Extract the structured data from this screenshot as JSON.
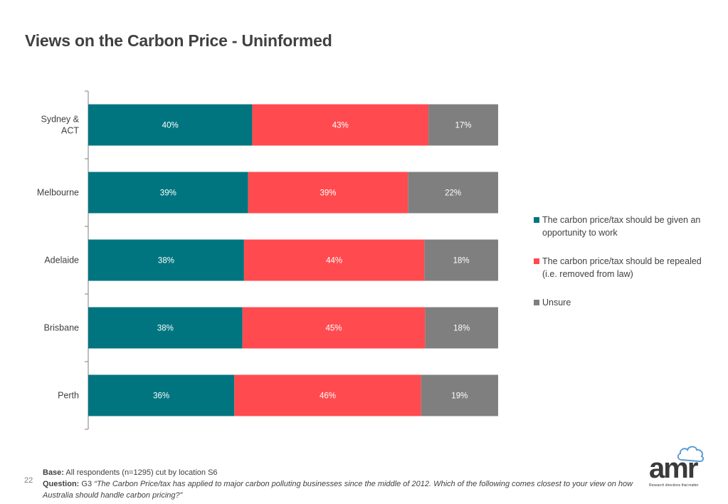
{
  "page": {
    "title": "Views on the Carbon Price - Uninformed",
    "page_number": "22"
  },
  "footer": {
    "base_label": "Base:",
    "base_text": "All respondents (n=1295) cut by location S6",
    "question_label": "Question:",
    "question_code": "G3",
    "question_text": "“The Carbon Price/tax has applied to major carbon polluting businesses since the middle of 2012. Which of the following comes closest to your view on how Australia should handle carbon pricing?”"
  },
  "logo": {
    "text": "amr",
    "tagline": "Research directions that matter"
  },
  "colors": {
    "teal": "#007580",
    "red": "#ff4b4f",
    "gray": "#7f7f7f"
  },
  "chart_data": {
    "type": "bar",
    "orientation": "horizontal",
    "stacked": true,
    "percent": true,
    "categories": [
      "Sydney & ACT",
      "Melbourne",
      "Adelaide",
      "Brisbane",
      "Perth"
    ],
    "series": [
      {
        "name": "The carbon price/tax should be given an opportunity to work",
        "color": "#007580",
        "values": [
          40,
          39,
          38,
          38,
          36
        ]
      },
      {
        "name": "The carbon price/tax should be repealed (i.e. removed from law)",
        "color": "#ff4b4f",
        "values": [
          43,
          39,
          44,
          45,
          46
        ]
      },
      {
        "name": "Unsure",
        "color": "#7f7f7f",
        "values": [
          17,
          22,
          18,
          18,
          19
        ]
      }
    ],
    "xlim": [
      0,
      100
    ],
    "legend": "right",
    "grid": false,
    "data_labels": true
  }
}
